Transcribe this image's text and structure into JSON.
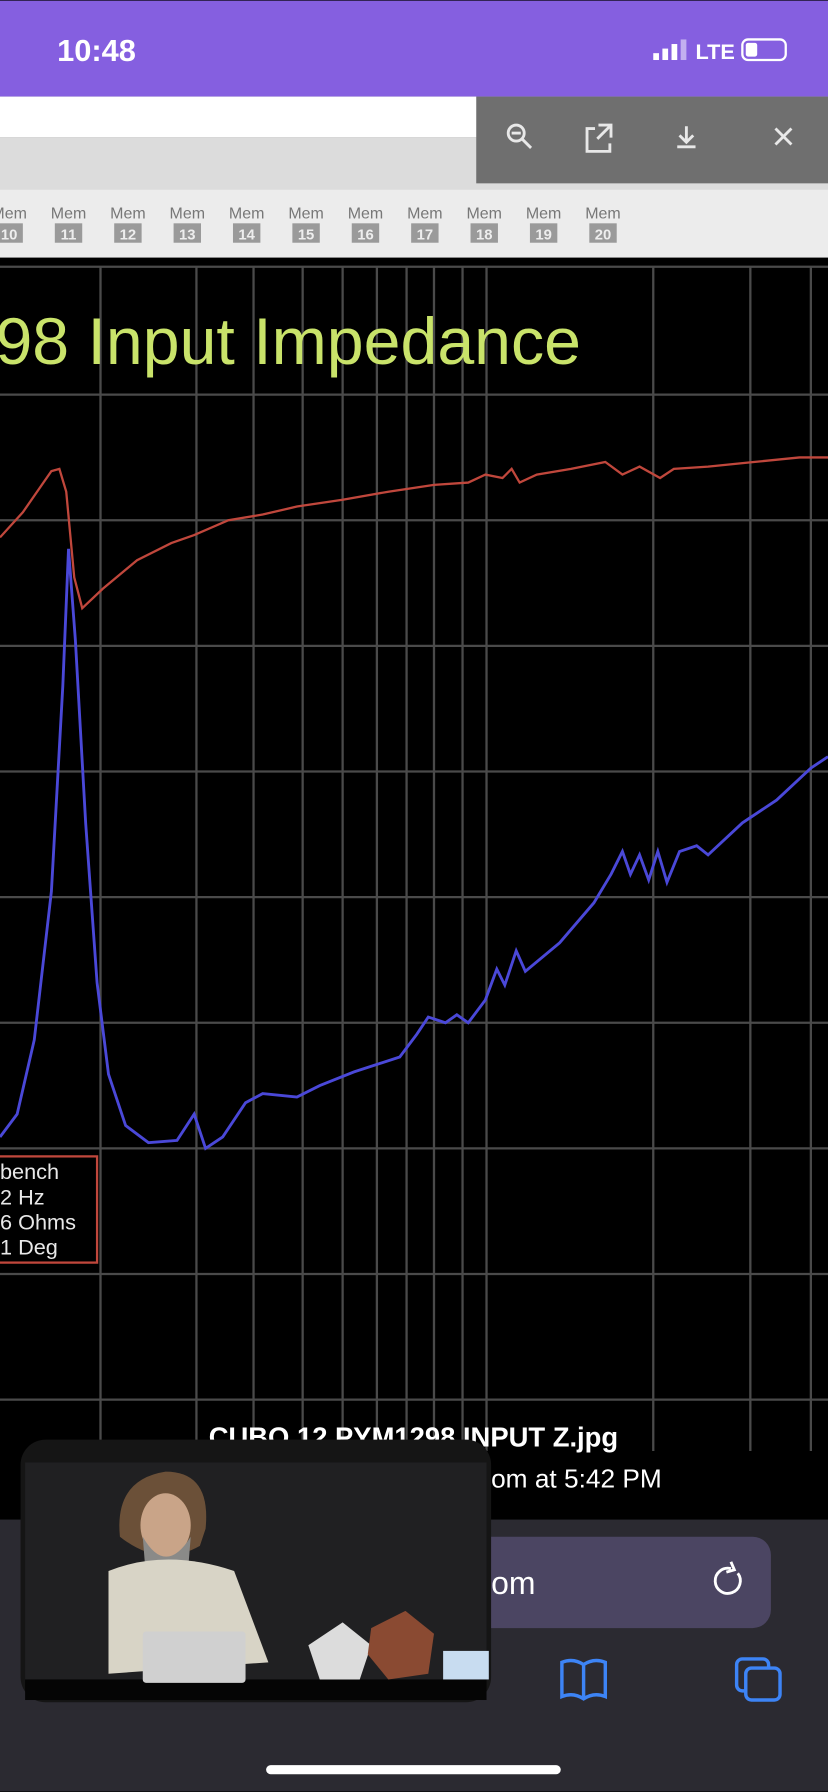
{
  "status": {
    "time": "10:48",
    "network": "LTE"
  },
  "toolbar": {
    "buttons": [
      {
        "label": "Mem",
        "number": "10"
      },
      {
        "label": "Mem",
        "number": "11"
      },
      {
        "label": "Mem",
        "number": "12"
      },
      {
        "label": "Mem",
        "number": "13"
      },
      {
        "label": "Mem",
        "number": "14"
      },
      {
        "label": "Mem",
        "number": "15"
      },
      {
        "label": "Mem",
        "number": "16"
      },
      {
        "label": "Mem",
        "number": "17"
      },
      {
        "label": "Mem",
        "number": "18"
      },
      {
        "label": "Mem",
        "number": "19"
      },
      {
        "label": "Mem",
        "number": "20"
      }
    ]
  },
  "chart_image": {
    "title": "98 Input Impedance",
    "legend": [
      "bench",
      "2 Hz",
      "6 Ohms",
      "1 Deg"
    ]
  },
  "viewer": {
    "file_name": "CUBO 12 PYM1298 INPUT Z.jpg",
    "info": "om at 5:42 PM"
  },
  "browser": {
    "url": "om"
  }
}
